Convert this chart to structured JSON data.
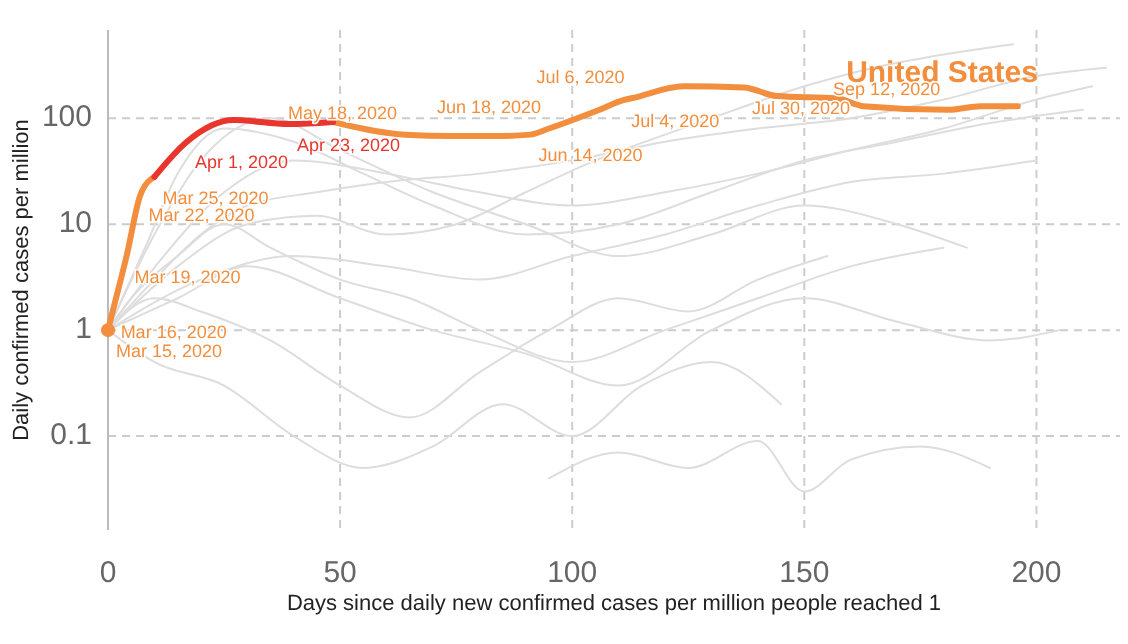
{
  "chart_data": {
    "type": "line",
    "xlabel": "Days since daily new confirmed cases per million people reached 1",
    "ylabel": "Daily confirmed cases per million",
    "log": "y",
    "grid": true,
    "legend": false,
    "marker": "none",
    "line_style": "solid",
    "xlim": [
      0,
      218
    ],
    "ylim": [
      0.013,
      680
    ],
    "xticks": [
      0,
      50,
      100,
      150,
      200
    ],
    "yticks": [
      0.1,
      1,
      10,
      100
    ],
    "series": [
      {
        "color": "#dddddd",
        "x": [
          0,
          10,
          20,
          30,
          45,
          60,
          80,
          100,
          120,
          140,
          160,
          180,
          200,
          215
        ],
        "values": [
          1,
          3,
          8,
          15,
          20,
          25,
          30,
          40,
          60,
          80,
          100,
          150,
          250,
          300
        ]
      },
      {
        "color": "#dddddd",
        "x": [
          0,
          8,
          15,
          25,
          40,
          55,
          70,
          90,
          110,
          130,
          150,
          170,
          190,
          210
        ],
        "values": [
          1,
          6,
          30,
          80,
          60,
          30,
          15,
          8,
          10,
          20,
          40,
          60,
          90,
          120
        ]
      },
      {
        "color": "#dddddd",
        "x": [
          0,
          10,
          20,
          35,
          50,
          65,
          80,
          95,
          110,
          125,
          140,
          155
        ],
        "values": [
          1,
          2,
          1.5,
          0.8,
          0.3,
          0.15,
          0.4,
          1,
          2,
          1.5,
          3,
          5
        ]
      },
      {
        "color": "#dddddd",
        "x": [
          0,
          15,
          30,
          45,
          60,
          75,
          90,
          105,
          120,
          135,
          150,
          165,
          180,
          195
        ],
        "values": [
          1,
          4,
          10,
          12,
          8,
          10,
          20,
          40,
          70,
          120,
          200,
          300,
          400,
          500
        ]
      },
      {
        "color": "#dddddd",
        "x": [
          0,
          5,
          15,
          25,
          35,
          50,
          65,
          80,
          100,
          120,
          140,
          160,
          180
        ],
        "values": [
          1,
          2,
          5,
          10,
          6,
          3,
          2,
          1,
          0.5,
          1,
          2,
          4,
          6
        ]
      },
      {
        "color": "#dddddd",
        "x": [
          0,
          10,
          25,
          40,
          55,
          70,
          85,
          100,
          115,
          130,
          145
        ],
        "values": [
          1,
          0.5,
          0.3,
          0.1,
          0.05,
          0.08,
          0.2,
          0.1,
          0.3,
          0.5,
          0.2
        ]
      },
      {
        "color": "#dddddd",
        "x": [
          0,
          12,
          25,
          40,
          60,
          80,
          100,
          120,
          140,
          160,
          180,
          200,
          212
        ],
        "values": [
          1,
          5,
          20,
          40,
          30,
          20,
          15,
          20,
          30,
          50,
          80,
          150,
          200
        ]
      },
      {
        "color": "#dddddd",
        "x": [
          0,
          20,
          40,
          60,
          80,
          100,
          120,
          140,
          160,
          180,
          200
        ],
        "values": [
          1,
          3,
          5,
          4,
          3,
          5,
          8,
          15,
          25,
          30,
          40
        ]
      },
      {
        "color": "#dddddd",
        "x": [
          95,
          110,
          125,
          140,
          150,
          160,
          175,
          190
        ],
        "values": [
          0.04,
          0.07,
          0.05,
          0.09,
          0.03,
          0.06,
          0.08,
          0.05
        ]
      },
      {
        "color": "#dddddd",
        "x": [
          0,
          10,
          20,
          35,
          50,
          70,
          90,
          110,
          130,
          150,
          170,
          185
        ],
        "values": [
          1,
          8,
          40,
          100,
          50,
          20,
          10,
          5,
          8,
          15,
          10,
          6
        ]
      },
      {
        "color": "#dddddd",
        "x": [
          0,
          15,
          30,
          50,
          70,
          90,
          110,
          130,
          150,
          170,
          190,
          205
        ],
        "values": [
          1,
          2,
          4,
          2,
          1,
          0.6,
          0.3,
          1,
          2,
          1.2,
          0.8,
          1
        ]
      },
      {
        "name": "United States",
        "color": "#f28e3d",
        "x": [
          0,
          1,
          4,
          7,
          10,
          17,
          27,
          39,
          48.5,
          64,
          74,
          85,
          91,
          95,
          105.6,
          111,
          113,
          124,
          137,
          144,
          157,
          162.7,
          181,
          188,
          196
        ],
        "values": [
          1,
          1.5,
          5,
          19,
          28,
          null,
          null,
          null,
          92,
          70,
          68,
          68,
          70,
          80,
          119,
          148,
          155,
          200,
          195,
          162,
          154,
          130,
          120,
          130,
          130
        ]
      },
      {
        "color": "#e8352e",
        "x": [
          10,
          17,
          27,
          39,
          48.5
        ],
        "values": [
          28,
          60,
          96,
          88,
          92
        ]
      }
    ],
    "annotations": [
      {
        "text": "Mar 15, 2020",
        "x": 0,
        "y": 1
      },
      {
        "text": "Mar 16, 2020",
        "x": 1,
        "y": 1.5
      },
      {
        "text": "Mar 19, 2020",
        "x": 4,
        "y": 5
      },
      {
        "text": "Mar 22, 2020",
        "x": 7,
        "y": 19
      },
      {
        "text": "Mar 25, 2020",
        "x": 10,
        "y": 28
      },
      {
        "text": "Apr 1, 2020",
        "x": 17,
        "y": 60
      },
      {
        "text": "Apr 23, 2020",
        "x": 39,
        "y": 88
      },
      {
        "text": "May 18, 2020",
        "x": 64,
        "y": 70
      },
      {
        "text": "Jun 14, 2020",
        "x": 91,
        "y": 70
      },
      {
        "text": "Jun 18, 2020",
        "x": 95,
        "y": 80
      },
      {
        "text": "Jul 4, 2020",
        "x": 111,
        "y": 148
      },
      {
        "text": "Jul 6, 2020",
        "x": 113,
        "y": 155
      },
      {
        "text": "Jul 30, 2020",
        "x": 137,
        "y": 195
      },
      {
        "text": "Sep 12, 2020",
        "x": 181,
        "y": 120
      }
    ]
  }
}
